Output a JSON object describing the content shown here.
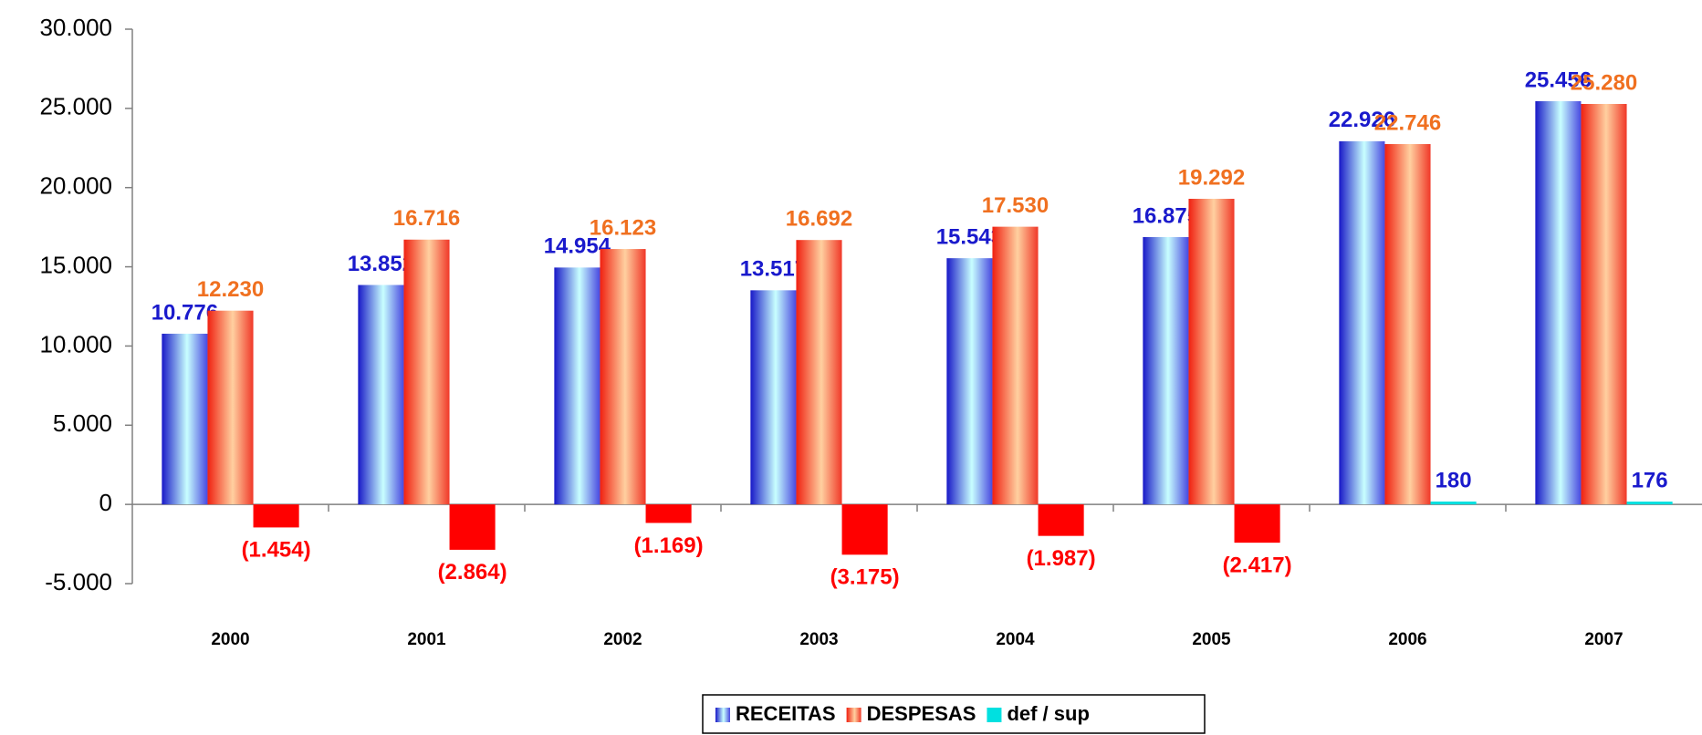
{
  "chart_data": {
    "type": "bar",
    "categories": [
      "2000",
      "2001",
      "2002",
      "2003",
      "2004",
      "2005",
      "2006",
      "2007"
    ],
    "series": [
      {
        "name": "RECEITAS",
        "color": "#2020d0",
        "label_color": "#1a1acc",
        "values": [
          10776,
          13852,
          14954,
          13517,
          15543,
          16875,
          22926,
          25456
        ],
        "value_labels": [
          "10.776",
          "13.852",
          "14.954",
          "13.517",
          "15.543",
          "16.875",
          "22.926",
          "25.456"
        ]
      },
      {
        "name": "DESPESAS",
        "color": "#f03020",
        "label_color": "#f07020",
        "values": [
          12230,
          16716,
          16123,
          16692,
          17530,
          19292,
          22746,
          25280
        ],
        "value_labels": [
          "12.230",
          "16.716",
          "16.123",
          "16.692",
          "17.530",
          "19.292",
          "22.746",
          "25.280"
        ]
      },
      {
        "name": "def / sup",
        "color": "#00e0e0",
        "negative_color": "#ff0000",
        "label_color": "#1a1acc",
        "negative_label_color": "#ff0000",
        "values": [
          -1454,
          -2864,
          -1169,
          -3175,
          -1987,
          -2417,
          180,
          176
        ],
        "value_labels": [
          "(1.454)",
          "(2.864)",
          "(1.169)",
          "(3.175)",
          "(1.987)",
          "(2.417)",
          "180",
          "176"
        ]
      }
    ],
    "ylim": [
      -5000,
      30000
    ],
    "yticks": [
      {
        "value": -5000,
        "label": "-5.000"
      },
      0,
      {
        "value": 5000,
        "label": "5.000"
      },
      {
        "value": 10000,
        "label": "10.000"
      },
      {
        "value": 15000,
        "label": "15.000"
      },
      {
        "value": 20000,
        "label": "20.000"
      },
      {
        "value": 25000,
        "label": "25.000"
      },
      {
        "value": 30000,
        "label": "30.000"
      }
    ],
    "grid": false,
    "legend": "bottom"
  }
}
